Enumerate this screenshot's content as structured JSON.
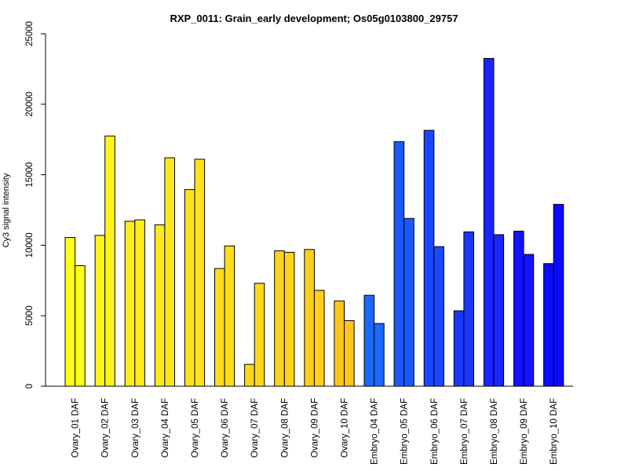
{
  "chart_data": {
    "type": "bar",
    "title": "RXP_0011: Grain_early development; Os05g0103800_29757",
    "xlabel": "",
    "ylabel": "Cy3 signal intensity",
    "ylim": [
      0,
      25000
    ],
    "y_ticks": [
      0,
      5000,
      10000,
      15000,
      20000,
      25000
    ],
    "grid": false,
    "legend": "none",
    "categories": [
      "Ovary_01 DAF",
      "Ovary_02 DAF",
      "Ovary_03 DAF",
      "Ovary_04 DAF",
      "Ovary_05 DAF",
      "Ovary_06 DAF",
      "Ovary_07 DAF",
      "Ovary_08 DAF",
      "Ovary_09 DAF",
      "Ovary_10 DAF",
      "Embryo_04 DAF",
      "Embryo_05 DAF",
      "Embryo_06 DAF",
      "Embryo_07 DAF",
      "Embryo_08 DAF",
      "Embryo_09 DAF",
      "Embryo_10 DAF"
    ],
    "series": [
      {
        "values": [
          10550,
          10700,
          11700,
          11450,
          13950,
          8350,
          1550,
          9600,
          9700,
          6050,
          6450,
          17350,
          18150,
          5350,
          23250,
          11000,
          8700
        ]
      },
      {
        "values": [
          8550,
          17750,
          11800,
          16200,
          16100,
          9950,
          7300,
          9500,
          6800,
          4650,
          4450,
          11900,
          9900,
          10950,
          10750,
          9350,
          12900
        ]
      }
    ],
    "bar_colors": [
      "#ffff1a",
      "#fff41a",
      "#ffed1a",
      "#ffe81a",
      "#ffe21a",
      "#ffdd1a",
      "#ffd91a",
      "#ffd41a",
      "#ffcf1a",
      "#ffc61a",
      "#1a6aff",
      "#1a59ff",
      "#1a47ff",
      "#1a36ff",
      "#1a24ff",
      "#1213ff",
      "#0a0aff"
    ]
  }
}
